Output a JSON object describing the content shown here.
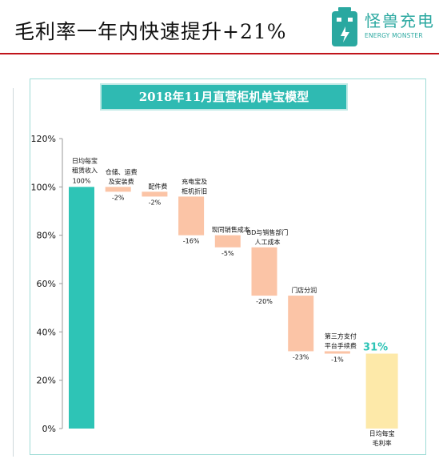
{
  "header": {
    "title": "毛利率一年内快速提升+21%",
    "brand_cn": "怪兽充电",
    "brand_en": "ENERGY MONSTER",
    "brand_color": "#2aa8a0",
    "rule_color": "#c0141b"
  },
  "chart_data": {
    "type": "bar",
    "subtype": "waterfall",
    "title": "2018年11月直营柜机单宝模型",
    "xlabel": "",
    "ylabel": "",
    "ylim": [
      0,
      120
    ],
    "yticks": [
      "0%",
      "20%",
      "40%",
      "60%",
      "80%",
      "100%",
      "120%"
    ],
    "grid": false,
    "categories": [
      "日均每宝租赁收入",
      "仓储、运费及安装费",
      "配件费",
      "充电宝及柜机折旧",
      "现同销售成本",
      "BD与销售部门人工成本",
      "门店分润",
      "第三方支付平台手续费",
      "日均每宝毛利率"
    ],
    "label_lines": [
      [
        "日均每宝",
        "租赁收入"
      ],
      [
        "仓储、运费",
        "及安装费"
      ],
      [
        "配件费"
      ],
      [
        "充电宝及",
        "柜机折旧"
      ],
      [
        "现同销售成本"
      ],
      [
        "BD与销售部门",
        "人工成本"
      ],
      [
        "门店分润"
      ],
      [
        "第三方支付",
        "平台手续费"
      ],
      [
        "日均每宝",
        "毛利率"
      ]
    ],
    "values": [
      100,
      -2,
      -2,
      -16,
      -5,
      -20,
      -23,
      -1,
      31
    ],
    "value_labels": [
      "100%",
      "-2%",
      "-2%",
      "-16%",
      "-5%",
      "-20%",
      "-23%",
      "-1%",
      "31%"
    ],
    "kinds": [
      "total",
      "decrease",
      "decrease",
      "decrease",
      "decrease",
      "decrease",
      "decrease",
      "decrease",
      "total"
    ],
    "colors": {
      "start": "#2ec4b6",
      "decrease": "#fbc4a6",
      "end": "#fde9a9",
      "highlight_label": "#2ec4b6"
    }
  }
}
